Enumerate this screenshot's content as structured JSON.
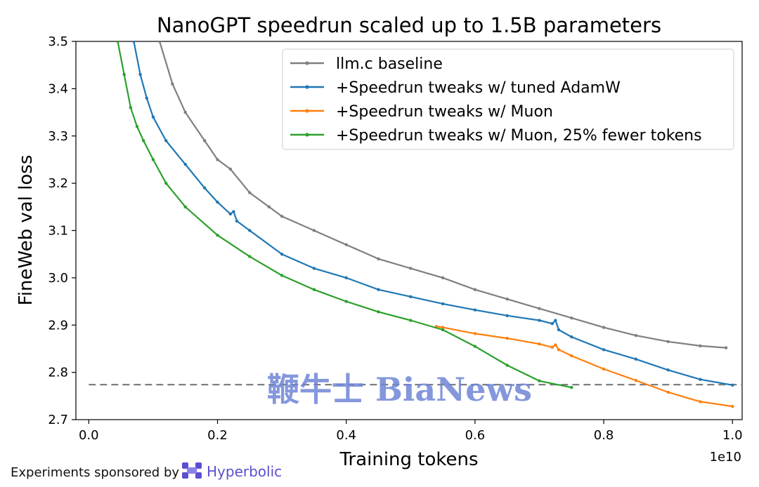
{
  "chart_data": {
    "type": "line",
    "title": "NanoGPT speedrun scaled up to 1.5B parameters",
    "xlabel": "Training tokens",
    "ylabel": "FineWeb val loss",
    "x_offset_label": "1e10",
    "xlim": [
      -0.02,
      1.015
    ],
    "ylim": [
      2.7,
      3.5
    ],
    "xticks": [
      0.0,
      0.2,
      0.4,
      0.6,
      0.8,
      1.0
    ],
    "xtick_labels": [
      "0.0",
      "0.2",
      "0.4",
      "0.6",
      "0.8",
      "1.0"
    ],
    "yticks": [
      2.7,
      2.8,
      2.9,
      3.0,
      3.1,
      3.2,
      3.3,
      3.4,
      3.5
    ],
    "ytick_labels": [
      "2.7",
      "2.8",
      "2.9",
      "3.0",
      "3.1",
      "3.2",
      "3.3",
      "3.4",
      "3.5"
    ],
    "grid": false,
    "legend_position": "top-right",
    "reference_line": {
      "y": 2.774,
      "style": "dashed",
      "color": "#7f7f7f"
    },
    "series": [
      {
        "name": "llm.c baseline",
        "color": "#7f7f7f",
        "x": [
          0.11,
          0.13,
          0.15,
          0.18,
          0.2,
          0.22,
          0.25,
          0.28,
          0.3,
          0.35,
          0.4,
          0.45,
          0.5,
          0.55,
          0.6,
          0.65,
          0.7,
          0.75,
          0.8,
          0.85,
          0.9,
          0.95,
          0.99
        ],
        "y": [
          3.5,
          3.41,
          3.35,
          3.29,
          3.25,
          3.23,
          3.18,
          3.15,
          3.13,
          3.1,
          3.07,
          3.04,
          3.02,
          3.0,
          2.975,
          2.955,
          2.935,
          2.915,
          2.895,
          2.878,
          2.865,
          2.856,
          2.852
        ]
      },
      {
        "name": "+Speedrun tweaks w/ tuned AdamW",
        "color": "#1f77b4",
        "x": [
          0.07,
          0.08,
          0.09,
          0.1,
          0.12,
          0.15,
          0.18,
          0.2,
          0.22,
          0.225,
          0.23,
          0.25,
          0.3,
          0.35,
          0.4,
          0.45,
          0.5,
          0.55,
          0.6,
          0.65,
          0.7,
          0.72,
          0.725,
          0.73,
          0.75,
          0.8,
          0.85,
          0.9,
          0.95,
          1.0
        ],
        "y": [
          3.5,
          3.43,
          3.38,
          3.34,
          3.29,
          3.24,
          3.19,
          3.16,
          3.135,
          3.14,
          3.12,
          3.1,
          3.05,
          3.02,
          3.0,
          2.975,
          2.96,
          2.945,
          2.932,
          2.92,
          2.91,
          2.903,
          2.91,
          2.89,
          2.875,
          2.848,
          2.828,
          2.805,
          2.785,
          2.773
        ]
      },
      {
        "name": "+Speedrun tweaks w/ Muon",
        "color": "#ff7f0e",
        "x": [
          0.54,
          0.55,
          0.6,
          0.65,
          0.7,
          0.72,
          0.725,
          0.73,
          0.75,
          0.8,
          0.85,
          0.9,
          0.95,
          1.0
        ],
        "y": [
          2.897,
          2.895,
          2.882,
          2.872,
          2.86,
          2.853,
          2.858,
          2.848,
          2.835,
          2.807,
          2.783,
          2.758,
          2.738,
          2.728
        ]
      },
      {
        "name": "+Speedrun tweaks w/ Muon, 25% fewer tokens",
        "color": "#2ca02c",
        "x": [
          0.045,
          0.055,
          0.065,
          0.075,
          0.085,
          0.1,
          0.12,
          0.15,
          0.2,
          0.25,
          0.3,
          0.35,
          0.4,
          0.45,
          0.5,
          0.55,
          0.6,
          0.65,
          0.7,
          0.75
        ],
        "y": [
          3.5,
          3.43,
          3.36,
          3.32,
          3.29,
          3.25,
          3.2,
          3.15,
          3.09,
          3.045,
          3.005,
          2.975,
          2.95,
          2.928,
          2.91,
          2.89,
          2.855,
          2.815,
          2.782,
          2.768
        ]
      }
    ]
  },
  "footer": {
    "sponsor_text": "Experiments sponsored by",
    "brand_name": "Hyperbolic"
  },
  "watermark": {
    "text": "鞭牛士 BiaNews"
  }
}
